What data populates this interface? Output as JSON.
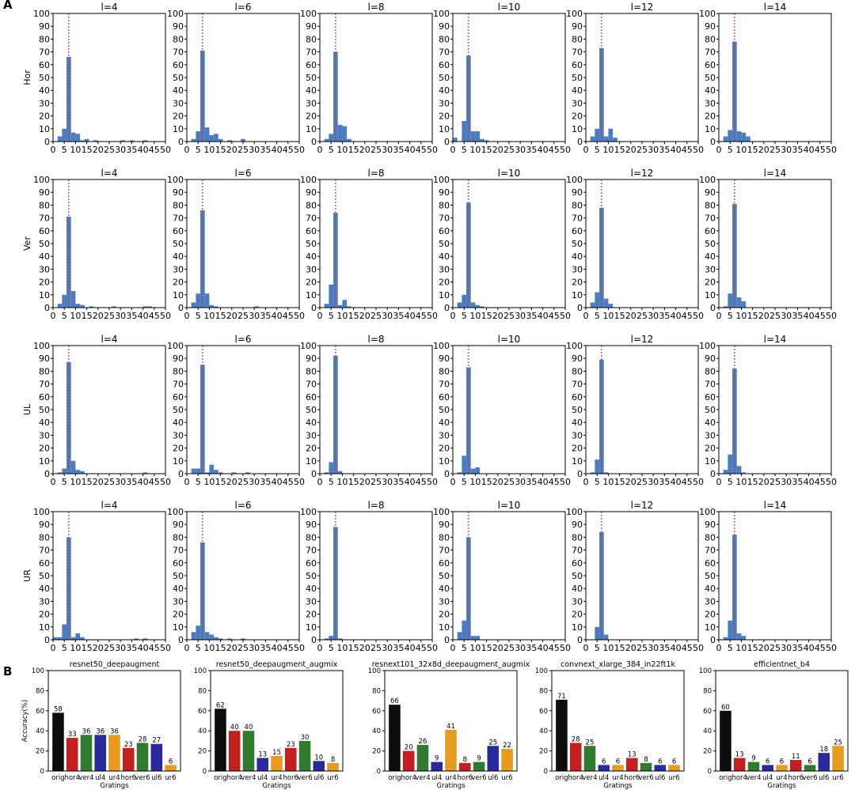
{
  "panel_labels": {
    "a": "A",
    "b": "B"
  },
  "colors": {
    "hist_bar": "#4a7dc2",
    "ref_line": "#e03030",
    "black": "#0d0d0d",
    "red": "#c41f1f",
    "green": "#2f7a2f",
    "blue": "#2a2a9c",
    "orange": "#e69b1e"
  },
  "chart_data": [
    {
      "type": "bar",
      "layout": "histogram grid",
      "rows": [
        "Hor",
        "Ver",
        "UL",
        "UR"
      ],
      "columns": [
        "l=4",
        "l=6",
        "l=8",
        "l=10",
        "l=12",
        "l=14"
      ],
      "bin_width": 2,
      "bin_starts": [
        0,
        2,
        4,
        6,
        8,
        10,
        12,
        14,
        16,
        18,
        20,
        22,
        24,
        26,
        28,
        30,
        32,
        34,
        36,
        38,
        40,
        42,
        44,
        46,
        48
      ],
      "xlim": [
        0,
        50
      ],
      "ylim": [
        0,
        100
      ],
      "xticks": [
        "0",
        "5",
        "10",
        "15",
        "20",
        "25",
        "30",
        "35",
        "40",
        "45",
        "50"
      ],
      "yticks": [
        "0",
        "10",
        "20",
        "30",
        "40",
        "50",
        "60",
        "70",
        "80",
        "90",
        "100"
      ],
      "reference_x": 7,
      "panels": [
        {
          "row": "Hor",
          "title": "l=4",
          "values": [
            0,
            4,
            10,
            66,
            7,
            6,
            1,
            2,
            0,
            1,
            0,
            0,
            0,
            0,
            0,
            1,
            0,
            1,
            0,
            0,
            1,
            0,
            0,
            0,
            0
          ]
        },
        {
          "row": "Hor",
          "title": "l=6",
          "values": [
            0,
            2,
            8,
            71,
            11,
            5,
            6,
            2,
            0,
            1,
            0,
            0,
            2,
            0,
            0,
            0,
            0,
            0,
            0,
            0,
            0,
            0,
            0,
            0,
            0
          ]
        },
        {
          "row": "Hor",
          "title": "l=8",
          "values": [
            0,
            2,
            6,
            70,
            13,
            12,
            2,
            0,
            0,
            0,
            0,
            0,
            0,
            0,
            0,
            0,
            0,
            0,
            0,
            0,
            0,
            0,
            0,
            0,
            0
          ]
        },
        {
          "row": "Hor",
          "title": "l=10",
          "values": [
            3,
            0,
            16,
            67,
            8,
            8,
            2,
            1,
            0,
            0,
            0,
            0,
            0,
            0,
            0,
            0,
            0,
            0,
            0,
            0,
            0,
            0,
            0,
            0,
            0
          ]
        },
        {
          "row": "Hor",
          "title": "l=12",
          "values": [
            0,
            4,
            10,
            73,
            4,
            10,
            3,
            0,
            0,
            0,
            0,
            0,
            0,
            0,
            0,
            0,
            0,
            0,
            0,
            0,
            0,
            0,
            0,
            0,
            0
          ]
        },
        {
          "row": "Hor",
          "title": "l=14",
          "values": [
            0,
            4,
            9,
            78,
            8,
            7,
            4,
            0,
            0,
            0,
            0,
            0,
            0,
            0,
            0,
            0,
            0,
            0,
            0,
            0,
            0,
            0,
            0,
            0,
            0
          ]
        },
        {
          "row": "Ver",
          "title": "l=4",
          "values": [
            0,
            3,
            10,
            71,
            13,
            3,
            2,
            0,
            1,
            0,
            0,
            0,
            0,
            1,
            0,
            0,
            0,
            0,
            0,
            0,
            1,
            1,
            0,
            0,
            0
          ]
        },
        {
          "row": "Ver",
          "title": "l=6",
          "values": [
            0,
            4,
            11,
            76,
            11,
            2,
            1,
            0,
            0,
            0,
            0,
            0,
            0,
            0,
            0,
            1,
            0,
            0,
            0,
            0,
            0,
            0,
            0,
            0,
            0
          ]
        },
        {
          "row": "Ver",
          "title": "l=8",
          "values": [
            0,
            3,
            18,
            74,
            2,
            6,
            1,
            0,
            0,
            0,
            0,
            0,
            0,
            0,
            0,
            0,
            0,
            0,
            0,
            0,
            0,
            0,
            0,
            0,
            0
          ]
        },
        {
          "row": "Ver",
          "title": "l=10",
          "values": [
            0,
            4,
            10,
            82,
            4,
            2,
            1,
            0,
            0,
            0,
            0,
            0,
            0,
            0,
            0,
            0,
            0,
            0,
            0,
            0,
            0,
            0,
            0,
            0,
            0
          ]
        },
        {
          "row": "Ver",
          "title": "l=12",
          "values": [
            0,
            4,
            12,
            78,
            7,
            3,
            0,
            0,
            0,
            0,
            0,
            0,
            0,
            0,
            0,
            0,
            0,
            0,
            0,
            0,
            0,
            0,
            0,
            0,
            0
          ]
        },
        {
          "row": "Ver",
          "title": "l=14",
          "values": [
            0,
            1,
            11,
            81,
            8,
            5,
            0,
            0,
            0,
            0,
            0,
            0,
            0,
            0,
            0,
            0,
            0,
            0,
            0,
            0,
            0,
            0,
            0,
            0,
            0
          ]
        },
        {
          "row": "UL",
          "title": "l=4",
          "values": [
            0,
            1,
            4,
            87,
            10,
            3,
            2,
            0,
            0,
            0,
            0,
            0,
            0,
            0,
            0,
            0,
            0,
            0,
            0,
            0,
            1,
            0,
            0,
            0,
            0
          ]
        },
        {
          "row": "UL",
          "title": "l=6",
          "values": [
            0,
            4,
            4,
            85,
            1,
            7,
            3,
            1,
            0,
            0,
            1,
            0,
            0,
            1,
            0,
            0,
            0,
            0,
            0,
            0,
            0,
            0,
            0,
            0,
            0
          ]
        },
        {
          "row": "UL",
          "title": "l=8",
          "values": [
            0,
            1,
            9,
            92,
            2,
            0,
            0,
            0,
            0,
            0,
            0,
            0,
            0,
            0,
            0,
            0,
            0,
            0,
            0,
            0,
            0,
            0,
            0,
            0,
            0
          ]
        },
        {
          "row": "UL",
          "title": "l=10",
          "values": [
            0,
            1,
            14,
            83,
            4,
            5,
            0,
            0,
            0,
            0,
            0,
            0,
            0,
            0,
            0,
            0,
            0,
            0,
            0,
            0,
            0,
            0,
            0,
            0,
            0
          ]
        },
        {
          "row": "UL",
          "title": "l=12",
          "values": [
            0,
            1,
            11,
            89,
            1,
            0,
            0,
            0,
            0,
            0,
            0,
            0,
            0,
            0,
            0,
            0,
            0,
            0,
            0,
            0,
            0,
            0,
            0,
            0,
            0
          ]
        },
        {
          "row": "UL",
          "title": "l=14",
          "values": [
            0,
            3,
            15,
            82,
            6,
            1,
            0,
            0,
            0,
            0,
            0,
            0,
            0,
            0,
            0,
            0,
            0,
            0,
            0,
            0,
            0,
            0,
            0,
            0,
            0
          ]
        },
        {
          "row": "UR",
          "title": "l=4",
          "values": [
            2,
            2,
            12,
            80,
            2,
            5,
            2,
            0,
            0,
            0,
            0,
            0,
            0,
            0,
            0,
            0,
            0,
            0,
            1,
            0,
            1,
            0,
            0,
            0,
            0
          ]
        },
        {
          "row": "UR",
          "title": "l=6",
          "values": [
            0,
            6,
            11,
            76,
            6,
            4,
            2,
            1,
            0,
            1,
            0,
            0,
            1,
            0,
            0,
            0,
            0,
            0,
            0,
            0,
            0,
            0,
            0,
            0,
            0
          ]
        },
        {
          "row": "UR",
          "title": "l=8",
          "values": [
            0,
            1,
            3,
            88,
            1,
            0,
            0,
            0,
            0,
            0,
            0,
            0,
            0,
            0,
            0,
            0,
            0,
            0,
            0,
            0,
            0,
            0,
            0,
            0,
            0
          ]
        },
        {
          "row": "UR",
          "title": "l=10",
          "values": [
            0,
            6,
            15,
            80,
            3,
            3,
            0,
            0,
            0,
            0,
            0,
            0,
            0,
            0,
            0,
            0,
            0,
            0,
            0,
            0,
            0,
            0,
            0,
            0,
            0
          ]
        },
        {
          "row": "UR",
          "title": "l=12",
          "values": [
            0,
            0,
            10,
            84,
            4,
            0,
            0,
            0,
            0,
            0,
            0,
            0,
            0,
            0,
            0,
            0,
            0,
            0,
            0,
            0,
            0,
            0,
            0,
            0,
            0
          ]
        },
        {
          "row": "UR",
          "title": "l=14",
          "values": [
            0,
            2,
            15,
            82,
            5,
            3,
            0,
            0,
            0,
            0,
            0,
            0,
            0,
            0,
            0,
            0,
            0,
            0,
            0,
            0,
            0,
            0,
            0,
            0,
            0
          ]
        }
      ]
    },
    {
      "type": "bar",
      "layout": "accuracy panels",
      "xlabel": "Gratings",
      "ylabel": "Accuracy(%)",
      "ylim": [
        0,
        100
      ],
      "yticks": [
        "0",
        "20",
        "40",
        "60",
        "80",
        "100"
      ],
      "categories": [
        "orig",
        "hor4",
        "ver4",
        "ul4",
        "ur4",
        "hor6",
        "ver6",
        "ul6",
        "ur6"
      ],
      "bar_colors": [
        "black",
        "red",
        "green",
        "blue",
        "orange",
        "red",
        "green",
        "blue",
        "orange"
      ],
      "panels": [
        {
          "title": "resnet50_deepaugment",
          "values": [
            58,
            33,
            36,
            36,
            36,
            23,
            28,
            27,
            6
          ]
        },
        {
          "title": "resnet50_deepaugment_augmix",
          "values": [
            62,
            40,
            40,
            13,
            15,
            23,
            30,
            10,
            8
          ]
        },
        {
          "title": "resnext101_32x8d_deepaugment_augmix",
          "values": [
            66,
            20,
            26,
            9,
            41,
            8,
            9,
            25,
            22
          ]
        },
        {
          "title": "convnext_xlarge_384_in22ft1k",
          "values": [
            71,
            28,
            25,
            6,
            6,
            13,
            8,
            6,
            6
          ]
        },
        {
          "title": "efficientnet_b4",
          "values": [
            60,
            13,
            9,
            6,
            6,
            11,
            6,
            18,
            25
          ]
        }
      ]
    }
  ]
}
